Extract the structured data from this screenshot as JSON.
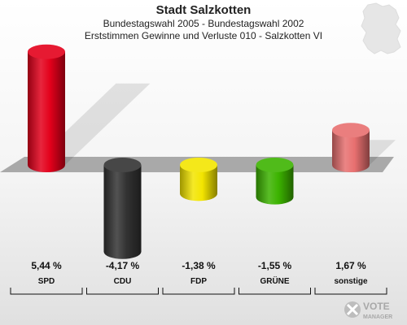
{
  "header": {
    "title": "Stadt Salzkotten",
    "subtitle1": "Bundestagswahl 2005 - Bundestagswahl 2002",
    "subtitle2": "Erststimmen Gewinne und Verluste 010 - Salzkotten VI"
  },
  "logo": {
    "line1": "VOTE",
    "line2": "MANAGER"
  },
  "chart_data": {
    "type": "bar",
    "title": "Stadt Salzkotten",
    "categories": [
      "SPD",
      "CDU",
      "FDP",
      "GRÜNE",
      "sonstige"
    ],
    "values": [
      5.44,
      -4.17,
      -1.38,
      -1.55,
      1.67
    ],
    "value_labels": [
      "5,44 %",
      "-4,17 %",
      "-1,38 %",
      "-1,55 %",
      "1,67 %"
    ],
    "colors": [
      "#e3001b",
      "#333333",
      "#f3e500",
      "#3cb300",
      "#e87070"
    ],
    "xlabel": "",
    "ylabel": ""
  }
}
